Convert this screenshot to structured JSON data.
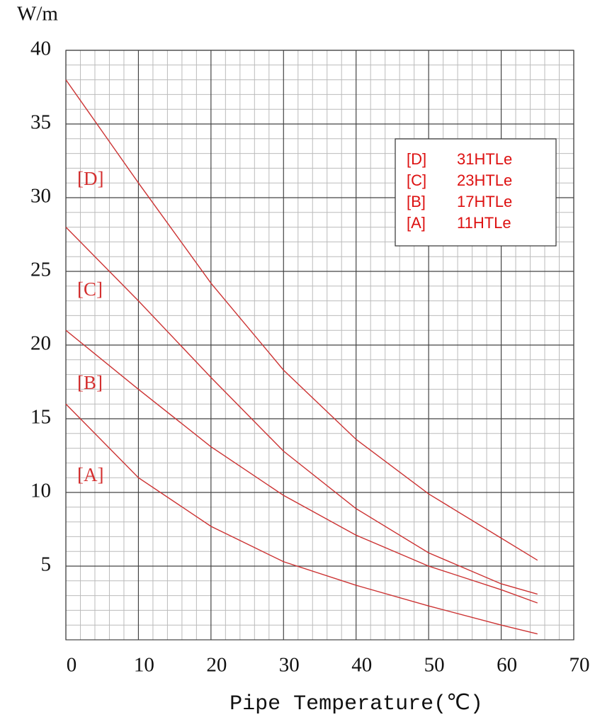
{
  "chart_data": {
    "type": "line",
    "y_label": "W/m",
    "x_label": "Pipe Temperature(℃)",
    "x": [
      0,
      10,
      20,
      30,
      40,
      50,
      60,
      65
    ],
    "series": [
      {
        "label": "[D]",
        "name": "31HTLe",
        "color": "#cc3333",
        "values": [
          38,
          31,
          24.2,
          18.3,
          13.6,
          9.9,
          6.9,
          5.4
        ]
      },
      {
        "label": "[C]",
        "name": "23HTLe",
        "color": "#cc3333",
        "values": [
          28,
          23,
          17.8,
          12.8,
          8.9,
          5.9,
          3.8,
          3.1
        ]
      },
      {
        "label": "[B]",
        "name": "17HTLe",
        "color": "#cc3333",
        "values": [
          21,
          17,
          13.1,
          9.8,
          7.1,
          5.0,
          3.4,
          2.5
        ]
      },
      {
        "label": "[A]",
        "name": "11HTLe",
        "color": "#cc3333",
        "values": [
          16,
          11,
          7.7,
          5.3,
          3.7,
          2.3,
          1.0,
          0.4
        ]
      }
    ],
    "xlim": [
      0,
      70
    ],
    "ylim": [
      0,
      40
    ],
    "xticks": [
      0,
      10,
      20,
      30,
      40,
      50,
      60,
      70
    ],
    "yticks": [
      5,
      10,
      15,
      20,
      25,
      30,
      35,
      40
    ],
    "grid": true
  }
}
